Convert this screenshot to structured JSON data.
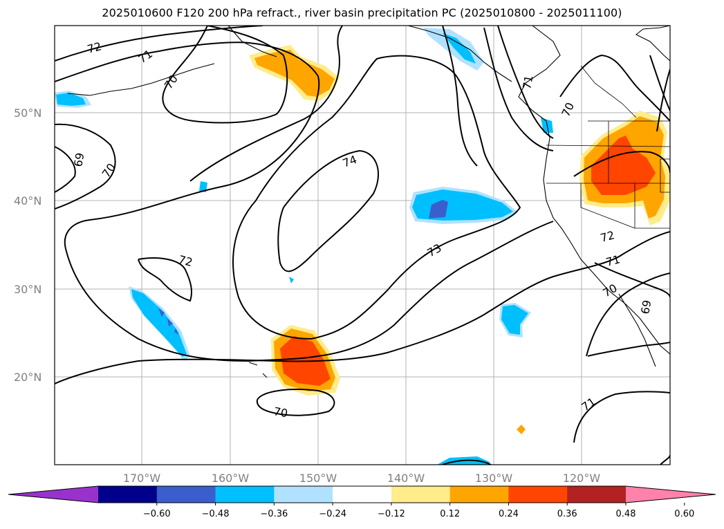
{
  "title": "2025010600 F120 200 hPa refract., river basin precipitation PC (2025010800 - 2025011100)",
  "map": {
    "lat_labels": [
      "50°N",
      "40°N",
      "30°N",
      "20°N"
    ],
    "lon_labels": [
      "170°W",
      "160°W",
      "150°W",
      "140°W",
      "130°W",
      "120°W"
    ],
    "contour_labels": [
      "72",
      "71",
      "70",
      "69",
      "70",
      "74",
      "73",
      "72",
      "71",
      "70",
      "69",
      "70",
      "71",
      "72",
      "71",
      "70",
      "71"
    ],
    "contour_color": "#000000",
    "grid_color": "#b0b0b0"
  },
  "colorbar": {
    "ticks": [
      "−0.60",
      "−0.48",
      "−0.36",
      "−0.24",
      "−0.12",
      "0.12",
      "0.24",
      "0.36",
      "0.48",
      "0.60"
    ],
    "colors": [
      "#9932cc",
      "#00008b",
      "#3a5fcd",
      "#00bfff",
      "#b0e2ff",
      "#ffffff",
      "#ffec8b",
      "#ffa500",
      "#ff4500",
      "#b22222",
      "#ff82ab"
    ]
  }
}
